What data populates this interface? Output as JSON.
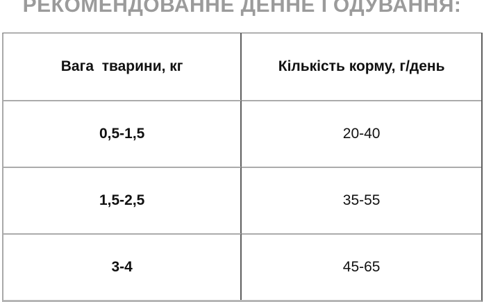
{
  "title": "РЕКОМЕНДОВАННЕ ДЕННЕ ГОДУВАННЯ:",
  "colors": {
    "title_text": "#9b9b9b",
    "vertical_rule": "#5e5e5e",
    "horizontal_rule": "#ababab",
    "cell_text": "#111111"
  },
  "table": {
    "columns": [
      {
        "label": "Вага  тварини, кг"
      },
      {
        "label": "Кількість корму, г/день"
      }
    ],
    "rows": [
      {
        "weight": "0,5-1,5",
        "food": "20-40"
      },
      {
        "weight": "1,5-2,5",
        "food": "35-55"
      },
      {
        "weight": "3-4",
        "food": "45-65"
      }
    ]
  },
  "chart_data": {
    "type": "table",
    "title": "РЕКОМЕНДОВАННЕ ДЕННЕ ГОДУВАННЯ:",
    "columns": [
      "Вага  тварини, кг",
      "Кількість корму, г/день"
    ],
    "rows": [
      [
        "0,5-1,5",
        "20-40"
      ],
      [
        "1,5-2,5",
        "35-55"
      ],
      [
        "3-4",
        "45-65"
      ]
    ]
  }
}
